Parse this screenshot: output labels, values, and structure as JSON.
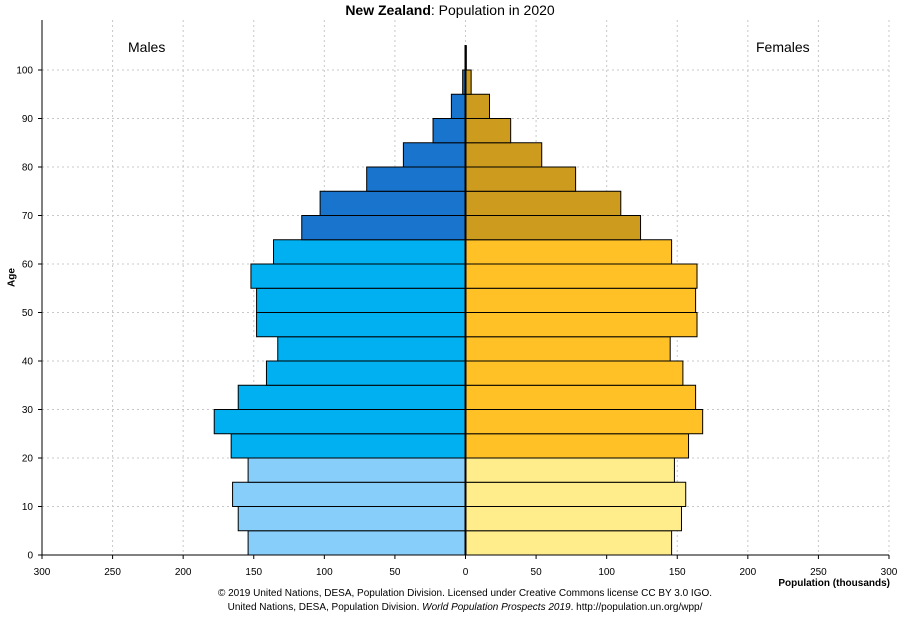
{
  "title": {
    "bold": "New Zealand",
    "rest": ": Population in 2020"
  },
  "chart_data": {
    "type": "bar",
    "orientation": "horizontal population pyramid",
    "ylabel": "Age",
    "xlabel": "Population (thousands)",
    "left_label": "Males",
    "right_label": "Females",
    "xlim": [
      -300,
      300
    ],
    "x_ticks": [
      300,
      250,
      200,
      150,
      100,
      50,
      0,
      50,
      100,
      150,
      200,
      250,
      300
    ],
    "y_ticks": [
      0,
      10,
      20,
      30,
      40,
      50,
      60,
      70,
      80,
      90,
      100
    ],
    "ylim": [
      0,
      105
    ],
    "grid": true,
    "categories": [
      "0-4",
      "5-9",
      "10-14",
      "15-19",
      "20-24",
      "25-29",
      "30-34",
      "35-39",
      "40-44",
      "45-49",
      "50-54",
      "55-59",
      "60-64",
      "65-69",
      "70-74",
      "75-79",
      "80-84",
      "85-89",
      "90-94",
      "95-99",
      "100+"
    ],
    "series": [
      {
        "name": "Males",
        "values": [
          154,
          161,
          165,
          154,
          166,
          178,
          161,
          141,
          133,
          148,
          148,
          152,
          136,
          116,
          103,
          70,
          44,
          23,
          10,
          2,
          0.3
        ],
        "colors": {
          "children": "#87cefa",
          "working": "#00b0f0",
          "elderly": "#1874cd"
        }
      },
      {
        "name": "Females",
        "values": [
          146,
          153,
          156,
          148,
          158,
          168,
          163,
          154,
          145,
          164,
          163,
          164,
          146,
          124,
          110,
          78,
          54,
          32,
          17,
          4,
          0.6
        ],
        "colors": {
          "children": "#ffec8b",
          "working": "#ffc125",
          "elderly": "#cd9b1d"
        }
      }
    ]
  },
  "credits": {
    "line1": "© 2019 United Nations, DESA, Population Division. Licensed under Creative Commons license CC BY 3.0 IGO.",
    "line2_pre": "United Nations, DESA, Population Division. ",
    "line2_italic": "World Population Prospects 2019",
    "line2_post": ". http://population.un.org/wpp/"
  }
}
